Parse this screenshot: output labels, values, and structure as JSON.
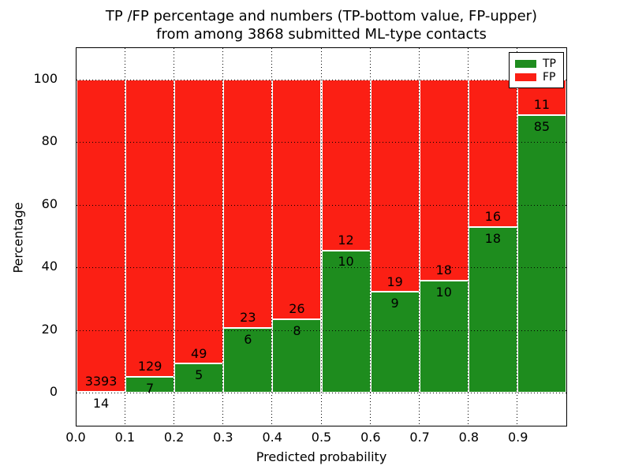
{
  "title": {
    "line1": "TP /FP percentage and numbers (TP-bottom value, FP-upper)",
    "line2": "from among 3868 submitted ML-type contacts"
  },
  "chart_data": {
    "type": "bar",
    "stacked": true,
    "normalized_to_percent": true,
    "title": "TP /FP percentage and numbers (TP-bottom value, FP-upper) from among 3868 submitted ML-type contacts",
    "xlabel": "Predicted probability",
    "ylabel": "Percentage",
    "categories": [
      "0.0",
      "0.1",
      "0.2",
      "0.3",
      "0.4",
      "0.5",
      "0.6",
      "0.7",
      "0.8",
      "0.9"
    ],
    "bin_width": 0.1,
    "series": [
      {
        "name": "TP",
        "color": "#1e8c1e",
        "counts": [
          14,
          7,
          5,
          6,
          8,
          10,
          9,
          10,
          18,
          85
        ]
      },
      {
        "name": "FP",
        "color": "#fb1f14",
        "counts": [
          3393,
          129,
          49,
          23,
          26,
          12,
          19,
          18,
          16,
          11
        ]
      }
    ],
    "tp_percent": [
      0.41,
      5.15,
      9.26,
      20.69,
      23.53,
      45.45,
      32.14,
      35.71,
      52.94,
      88.54
    ],
    "total_contacts": 3868,
    "xlim": [
      0.0,
      1.0
    ],
    "ylim": [
      -11,
      110
    ],
    "yticks": [
      0,
      20,
      40,
      60,
      80,
      100
    ],
    "xticks": [
      "0.0",
      "0.1",
      "0.2",
      "0.3",
      "0.4",
      "0.5",
      "0.6",
      "0.7",
      "0.8",
      "0.9"
    ],
    "grid": "dotted",
    "legend": {
      "position": "upper right",
      "entries": [
        {
          "label": "TP",
          "color": "#1e8c1e"
        },
        {
          "label": "FP",
          "color": "#fb1f14"
        }
      ]
    }
  }
}
